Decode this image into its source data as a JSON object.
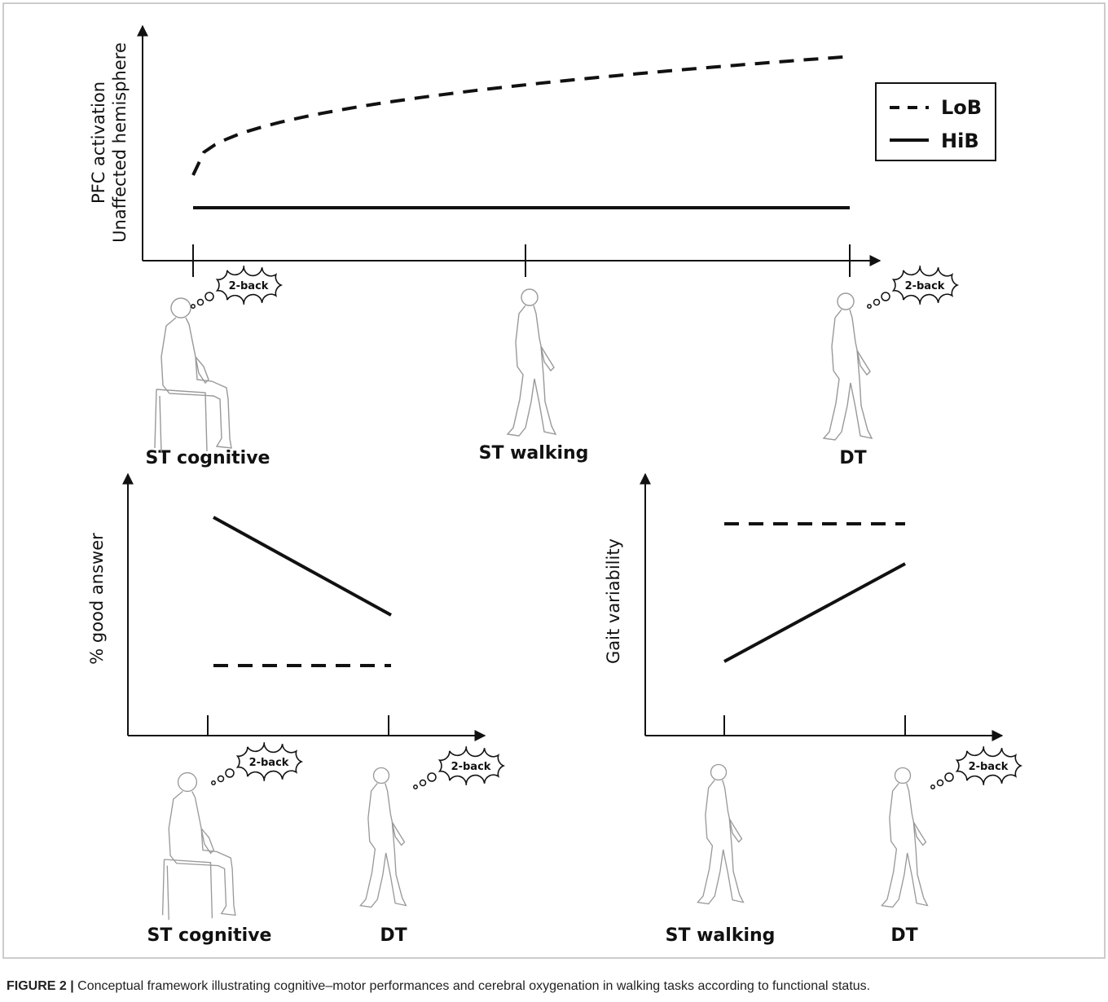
{
  "top_panel": {
    "y_label_lines": [
      "PFC activation",
      "Unaffected hemisphere"
    ],
    "legend": [
      "LoB",
      "HiB"
    ],
    "conditions": [
      "ST cognitive",
      "ST walking",
      "DT"
    ],
    "thought_bubbles": [
      "2-back",
      "2-back"
    ]
  },
  "left_panel": {
    "y_label": "% good answer",
    "conditions": [
      "ST cognitive",
      "DT"
    ],
    "thought_bubbles": [
      "2-back",
      "2-back"
    ]
  },
  "right_panel": {
    "y_label": "Gait variability",
    "conditions": [
      "ST walking",
      "DT"
    ],
    "thought_bubbles": [
      "2-back"
    ]
  },
  "caption": {
    "label": "FIGURE 2 |",
    "text": "Conceptual framework illustrating cognitive–motor performances and cerebral oxygenation in walking tasks according to functional status."
  }
}
